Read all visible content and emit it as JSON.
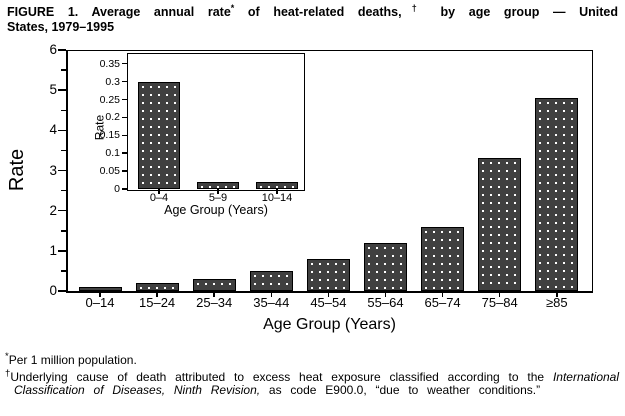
{
  "figure_title": {
    "line1": {
      "t1": "FIGURE 1. Average annual rate",
      "sup1": "*",
      "t2": " of heat-related deaths,",
      "sup2": "†",
      "t3": " by age group — United"
    },
    "line2": "States, 1979–1995"
  },
  "footnotes": {
    "star": {
      "marker": "*",
      "text": "Per 1 million population."
    },
    "dagger": {
      "marker": "†",
      "text_before_italic": "Underlying cause of death attributed to excess heat exposure classified according to the ",
      "italic": "International Classification of Diseases, Ninth Revision,",
      "text_after_italic": " as code E900.0, “due to weather conditions.”"
    }
  },
  "chart_data": [
    {
      "id": "main",
      "type": "bar",
      "title": "",
      "categories": [
        "0–14",
        "15–24",
        "25–34",
        "35–44",
        "45–54",
        "55–64",
        "65–74",
        "75–84",
        "≥85"
      ],
      "values": [
        0.1,
        0.2,
        0.3,
        0.5,
        0.8,
        1.2,
        1.6,
        3.3,
        4.8
      ],
      "xlabel": "Age Group (Years)",
      "ylabel": "Rate",
      "ylim": [
        0,
        6
      ],
      "yticks": [
        0,
        1,
        2,
        3,
        4,
        5,
        6
      ],
      "ytick_minor": [
        0.5,
        1.5,
        2.5,
        3.5,
        4.5,
        5.5
      ],
      "grid": false,
      "legend": "none",
      "bar_fill": "#000000",
      "bar_pattern": "white-dot-hatch"
    },
    {
      "id": "inset",
      "type": "bar",
      "title": "",
      "inset_of": "main",
      "categories": [
        "0–4",
        "5–9",
        "10–14"
      ],
      "values": [
        0.3,
        0.02,
        0.02
      ],
      "xlabel": "Age Group (Years)",
      "ylabel": "Rate",
      "ylim": [
        0,
        0.35
      ],
      "yticks": [
        0,
        0.05,
        0.1,
        0.15,
        0.2,
        0.25,
        0.3,
        0.35
      ],
      "grid": false,
      "legend": "none",
      "bar_fill": "#000000",
      "bar_pattern": "white-dot-hatch"
    }
  ]
}
